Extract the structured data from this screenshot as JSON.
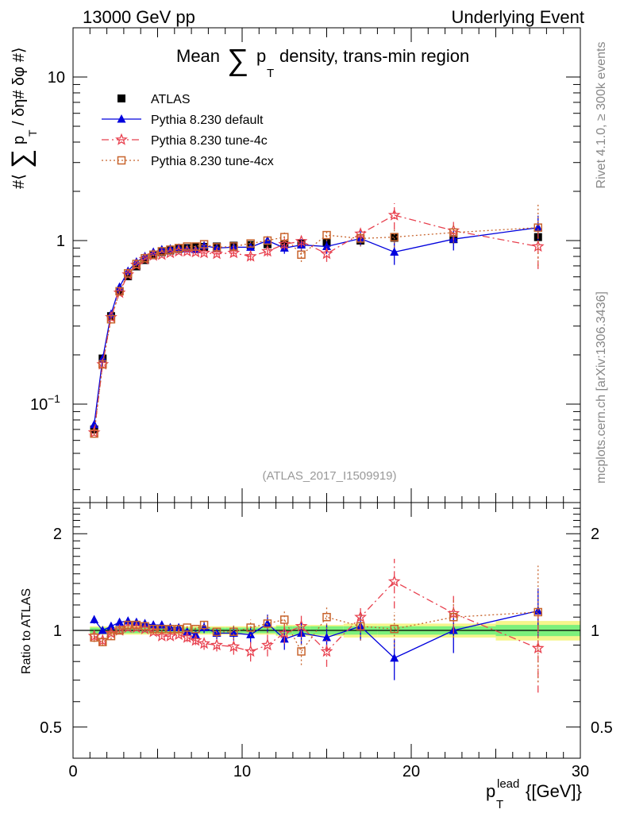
{
  "header": {
    "left": "13000 GeV pp",
    "right": "Underlying Event"
  },
  "side_labels": {
    "rivet": "Rivet 4.1.0, ≥ 300k events",
    "mcplots": "mcplots.cern.ch [arXiv:1306.3436]"
  },
  "colors": {
    "atlas": "#000000",
    "default": "#0000dd",
    "tune4c": "#e8414f",
    "tune4cx": "#c8642d",
    "band_inner": "#7cf07c",
    "band_outer": "#f5f58c"
  },
  "chart_data": [
    {
      "id": "main",
      "type": "scatter",
      "title_parts": [
        "Mean",
        "∑",
        "p",
        "T",
        "density, trans-min region"
      ],
      "ylabel_parts": [
        "#⟨",
        "∑",
        "p",
        "T",
        "/ δη# δφ #⟩"
      ],
      "yscale": "log",
      "xlim": [
        0,
        30
      ],
      "ylim": [
        0.025,
        20
      ],
      "yticks": [
        {
          "value": 0.1,
          "base": "10",
          "exp": "−1"
        },
        {
          "value": 1,
          "label": "1"
        },
        {
          "value": 10,
          "label": "10"
        }
      ],
      "watermark": "(ATLAS_2017_I1509919)",
      "legend": [
        {
          "key": "atlas",
          "label": "ATLAS",
          "marker": "square-filled",
          "line": "none"
        },
        {
          "key": "default",
          "label": "Pythia 8.230 default",
          "marker": "triangle-filled",
          "line": "solid"
        },
        {
          "key": "tune4c",
          "label": "Pythia 8.230 tune-4c",
          "marker": "star",
          "line": "dashdot"
        },
        {
          "key": "tune4cx",
          "label": "Pythia 8.230 tune-4cx",
          "marker": "square-open",
          "line": "dotted"
        }
      ],
      "series": [
        {
          "key": "atlas",
          "x": [
            1.25,
            1.75,
            2.25,
            2.75,
            3.25,
            3.75,
            4.25,
            4.75,
            5.25,
            5.75,
            6.25,
            6.75,
            7.25,
            7.75,
            8.5,
            9.5,
            10.5,
            11.5,
            12.5,
            13.5,
            15.0,
            17.0,
            19.0,
            22.5,
            27.5
          ],
          "y": [
            0.07,
            0.19,
            0.345,
            0.49,
            0.605,
            0.695,
            0.76,
            0.815,
            0.85,
            0.87,
            0.89,
            0.9,
            0.91,
            0.915,
            0.92,
            0.93,
            0.94,
            0.95,
            0.955,
            0.96,
            0.97,
            1.0,
            1.04,
            1.02,
            1.05
          ],
          "yerr": [
            0.004,
            0.006,
            0.008,
            0.01,
            0.01,
            0.012,
            0.012,
            0.012,
            0.012,
            0.012,
            0.012,
            0.012,
            0.014,
            0.015,
            0.016,
            0.018,
            0.02,
            0.022,
            0.024,
            0.026,
            0.03,
            0.035,
            0.04,
            0.05,
            0.07
          ]
        },
        {
          "key": "default",
          "x": [
            1.25,
            1.75,
            2.25,
            2.75,
            3.25,
            3.75,
            4.25,
            4.75,
            5.25,
            5.75,
            6.25,
            6.75,
            7.25,
            7.75,
            8.5,
            9.5,
            10.5,
            11.5,
            12.5,
            13.5,
            15.0,
            17.0,
            19.0,
            22.5,
            27.5
          ],
          "y": [
            0.075,
            0.19,
            0.355,
            0.52,
            0.65,
            0.74,
            0.8,
            0.85,
            0.88,
            0.89,
            0.9,
            0.89,
            0.88,
            0.93,
            0.9,
            0.91,
            0.91,
            1.0,
            0.9,
            0.94,
            0.92,
            1.03,
            0.85,
            1.02,
            1.2
          ],
          "yerr": [
            0.002,
            0.004,
            0.006,
            0.008,
            0.009,
            0.01,
            0.01,
            0.011,
            0.012,
            0.014,
            0.016,
            0.018,
            0.02,
            0.03,
            0.03,
            0.04,
            0.05,
            0.06,
            0.07,
            0.08,
            0.09,
            0.11,
            0.14,
            0.15,
            0.22
          ]
        },
        {
          "key": "tune4c",
          "x": [
            1.25,
            1.75,
            2.25,
            2.75,
            3.25,
            3.75,
            4.25,
            4.75,
            5.25,
            5.75,
            6.25,
            6.75,
            7.25,
            7.75,
            8.5,
            9.5,
            10.5,
            11.5,
            12.5,
            13.5,
            15.0,
            17.0,
            19.0,
            22.5,
            27.5
          ],
          "y": [
            0.067,
            0.175,
            0.34,
            0.48,
            0.62,
            0.71,
            0.77,
            0.81,
            0.82,
            0.84,
            0.86,
            0.86,
            0.85,
            0.84,
            0.83,
            0.84,
            0.8,
            0.86,
            0.95,
            0.99,
            0.83,
            1.1,
            1.43,
            1.15,
            0.92
          ],
          "yerr": [
            0.002,
            0.004,
            0.006,
            0.008,
            0.009,
            0.01,
            0.01,
            0.011,
            0.012,
            0.014,
            0.016,
            0.018,
            0.02,
            0.03,
            0.03,
            0.04,
            0.05,
            0.06,
            0.07,
            0.08,
            0.09,
            0.11,
            0.26,
            0.15,
            0.25
          ]
        },
        {
          "key": "tune4cx",
          "x": [
            1.25,
            1.75,
            2.25,
            2.75,
            3.25,
            3.75,
            4.25,
            4.75,
            5.25,
            5.75,
            6.25,
            6.75,
            7.25,
            7.75,
            8.5,
            9.5,
            10.5,
            11.5,
            12.5,
            13.5,
            15.0,
            17.0,
            19.0,
            22.5,
            27.5
          ],
          "y": [
            0.066,
            0.175,
            0.33,
            0.49,
            0.63,
            0.72,
            0.78,
            0.82,
            0.86,
            0.88,
            0.9,
            0.92,
            0.92,
            0.95,
            0.91,
            0.92,
            0.96,
            1.0,
            1.05,
            0.82,
            1.08,
            1.03,
            1.05,
            1.12,
            1.2
          ],
          "yerr": [
            0.002,
            0.004,
            0.006,
            0.008,
            0.009,
            0.01,
            0.01,
            0.011,
            0.012,
            0.014,
            0.016,
            0.018,
            0.02,
            0.03,
            0.03,
            0.04,
            0.05,
            0.06,
            0.07,
            0.08,
            0.09,
            0.11,
            0.14,
            0.15,
            0.5
          ]
        }
      ]
    },
    {
      "id": "ratio",
      "type": "scatter",
      "ylabel": "Ratio to ATLAS",
      "yscale": "log",
      "xlim": [
        0,
        30
      ],
      "ylim": [
        0.4,
        2.5
      ],
      "yticks": [
        {
          "value": 0.5,
          "label": "0.5"
        },
        {
          "value": 1,
          "label": "1"
        },
        {
          "value": 2,
          "label": "2"
        }
      ],
      "xticks": [
        {
          "value": 0,
          "label": "0"
        },
        {
          "value": 10,
          "label": "10"
        },
        {
          "value": 20,
          "label": "20"
        },
        {
          "value": 30,
          "label": "30"
        }
      ],
      "xlabel_parts": [
        "p",
        "T",
        "lead",
        "{[GeV]}"
      ],
      "band": {
        "x_edges": [
          1.0,
          1.5,
          2.0,
          2.5,
          3.0,
          3.5,
          4.0,
          4.5,
          5.0,
          5.5,
          6.0,
          6.5,
          7.0,
          7.5,
          8.0,
          9.0,
          10.0,
          11.0,
          12.0,
          13.0,
          14.0,
          16.0,
          18.0,
          20.0,
          25.0,
          30.0
        ],
        "inner": [
          0.02,
          0.02,
          0.02,
          0.02,
          0.02,
          0.02,
          0.02,
          0.02,
          0.02,
          0.02,
          0.02,
          0.02,
          0.02,
          0.02,
          0.02,
          0.02,
          0.02,
          0.02,
          0.03,
          0.03,
          0.03,
          0.03,
          0.03,
          0.03,
          0.04
        ],
        "outer": [
          0.03,
          0.03,
          0.03,
          0.03,
          0.03,
          0.03,
          0.03,
          0.03,
          0.03,
          0.03,
          0.03,
          0.03,
          0.03,
          0.03,
          0.03,
          0.03,
          0.03,
          0.03,
          0.04,
          0.04,
          0.04,
          0.05,
          0.05,
          0.05,
          0.07
        ]
      },
      "series": [
        {
          "key": "default",
          "x": [
            1.25,
            1.75,
            2.25,
            2.75,
            3.25,
            3.75,
            4.25,
            4.75,
            5.25,
            5.75,
            6.25,
            6.75,
            7.25,
            7.75,
            8.5,
            9.5,
            10.5,
            11.5,
            12.5,
            13.5,
            15.0,
            17.0,
            19.0,
            22.5,
            27.5
          ],
          "y": [
            1.08,
            1.0,
            1.03,
            1.06,
            1.07,
            1.06,
            1.05,
            1.04,
            1.04,
            1.02,
            1.02,
            0.99,
            0.97,
            1.02,
            0.98,
            0.98,
            0.97,
            1.05,
            0.94,
            0.98,
            0.95,
            1.03,
            0.82,
            1.0,
            1.15
          ],
          "yerr": [
            0.03,
            0.02,
            0.02,
            0.02,
            0.02,
            0.02,
            0.02,
            0.02,
            0.02,
            0.02,
            0.02,
            0.03,
            0.03,
            0.04,
            0.04,
            0.05,
            0.06,
            0.07,
            0.07,
            0.08,
            0.09,
            0.1,
            0.12,
            0.15,
            0.2
          ]
        },
        {
          "key": "tune4c",
          "x": [
            1.25,
            1.75,
            2.25,
            2.75,
            3.25,
            3.75,
            4.25,
            4.75,
            5.25,
            5.75,
            6.25,
            6.75,
            7.25,
            7.75,
            8.5,
            9.5,
            10.5,
            11.5,
            12.5,
            13.5,
            15.0,
            17.0,
            19.0,
            22.5,
            27.5
          ],
          "y": [
            0.96,
            0.93,
            0.98,
            1.0,
            1.02,
            1.02,
            1.01,
            0.99,
            0.96,
            0.96,
            0.97,
            0.95,
            0.93,
            0.91,
            0.9,
            0.89,
            0.86,
            0.9,
            0.98,
            1.03,
            0.86,
            1.1,
            1.42,
            1.13,
            0.88
          ],
          "yerr": [
            0.03,
            0.02,
            0.02,
            0.02,
            0.02,
            0.02,
            0.02,
            0.02,
            0.02,
            0.02,
            0.02,
            0.03,
            0.03,
            0.04,
            0.04,
            0.05,
            0.06,
            0.07,
            0.07,
            0.08,
            0.09,
            0.1,
            0.25,
            0.15,
            0.24
          ]
        },
        {
          "key": "tune4cx",
          "x": [
            1.25,
            1.75,
            2.25,
            2.75,
            3.25,
            3.75,
            4.25,
            4.75,
            5.25,
            5.75,
            6.25,
            6.75,
            7.25,
            7.75,
            8.5,
            9.5,
            10.5,
            11.5,
            12.5,
            13.5,
            15.0,
            17.0,
            19.0,
            22.5,
            27.5
          ],
          "y": [
            0.95,
            0.92,
            0.96,
            1.0,
            1.04,
            1.04,
            1.03,
            1.01,
            1.01,
            1.01,
            1.01,
            1.02,
            1.01,
            1.04,
            0.99,
            0.99,
            1.02,
            1.05,
            1.08,
            0.86,
            1.1,
            1.03,
            1.01,
            1.1,
            1.14
          ],
          "yerr": [
            0.03,
            0.02,
            0.02,
            0.02,
            0.02,
            0.02,
            0.02,
            0.02,
            0.02,
            0.02,
            0.02,
            0.03,
            0.03,
            0.04,
            0.04,
            0.05,
            0.06,
            0.07,
            0.07,
            0.08,
            0.09,
            0.1,
            0.13,
            0.15,
            0.45
          ]
        }
      ]
    }
  ]
}
